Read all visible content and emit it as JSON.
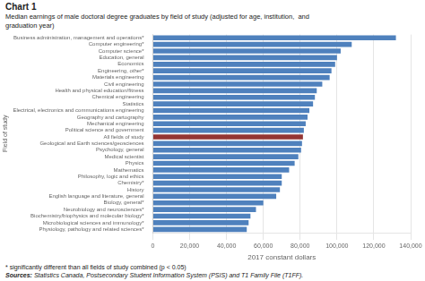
{
  "chart_data": {
    "type": "bar",
    "orientation": "horizontal",
    "title": "Chart 1",
    "subtitle": "Median earnings of male doctoral degree graduates by field of study (adjusted for age, institution,  and\ngraduation year)",
    "y_label": "Field of study",
    "x_label": "2017 constant dollars",
    "footnote": "* significantly different than all fields of study combined (p < 0.05)",
    "source_label": "Sources:",
    "source": "Statistics Canada, Postsecondary Student Information System (PSIS) and T1 Family File (T1FF).",
    "categories": [
      "Business administration, management and operations*",
      "Computer engineering*",
      "Computer science*",
      "Education, general",
      "Economics",
      "Engineering, other*",
      "Materials engineering",
      "Civil engineering",
      "Health and physical education/fitness",
      "Chemical engineering",
      "Statistics",
      "Electrical, electronics and communications engineering",
      "Geography and cartography",
      "Mechanical engineering",
      "Political science and government",
      "All fields of study",
      "Geological and Earth sciences/geosciences",
      "Psychology, general",
      "Medical scientist",
      "Physics",
      "Mathematics",
      "Philosophy, logic and ethics",
      "Chemistry*",
      "History",
      "English language and literature, general",
      "Biology, general*",
      "Neurobiology and neurosciences*",
      "Biochemistry/biophysics and molecular biology*",
      "Microbiological sciences and immunology*",
      "Physiology, pathology and related sciences*"
    ],
    "values": [
      132000,
      108000,
      102000,
      100000,
      99000,
      97000,
      96000,
      92000,
      89000,
      88000,
      87000,
      85000,
      84000,
      83000,
      82000,
      81500,
      81000,
      80500,
      79000,
      77000,
      74000,
      70000,
      70000,
      69000,
      67000,
      60000,
      56000,
      53000,
      52000,
      51000
    ],
    "colors": [
      "#4f81bd",
      "#4f81bd",
      "#4f81bd",
      "#4f81bd",
      "#4f81bd",
      "#4f81bd",
      "#4f81bd",
      "#4f81bd",
      "#4f81bd",
      "#4f81bd",
      "#4f81bd",
      "#4f81bd",
      "#4f81bd",
      "#4f81bd",
      "#4f81bd",
      "#943634",
      "#4f81bd",
      "#4f81bd",
      "#4f81bd",
      "#4f81bd",
      "#4f81bd",
      "#4f81bd",
      "#4f81bd",
      "#4f81bd",
      "#4f81bd",
      "#4f81bd",
      "#4f81bd",
      "#4f81bd",
      "#4f81bd",
      "#4f81bd"
    ],
    "xlim": [
      0,
      140000
    ],
    "xticks": [
      0,
      {
        "value": 20000,
        "label": "20,000"
      },
      {
        "value": 40000,
        "label": "40,000"
      },
      {
        "value": 60000,
        "label": "60,000"
      },
      {
        "value": 80000,
        "label": "80,000"
      },
      {
        "value": 100000,
        "label": "100,000"
      },
      {
        "value": 120000,
        "label": "120,000"
      },
      {
        "value": 140000,
        "label": "140,000"
      }
    ],
    "grid": true
  }
}
